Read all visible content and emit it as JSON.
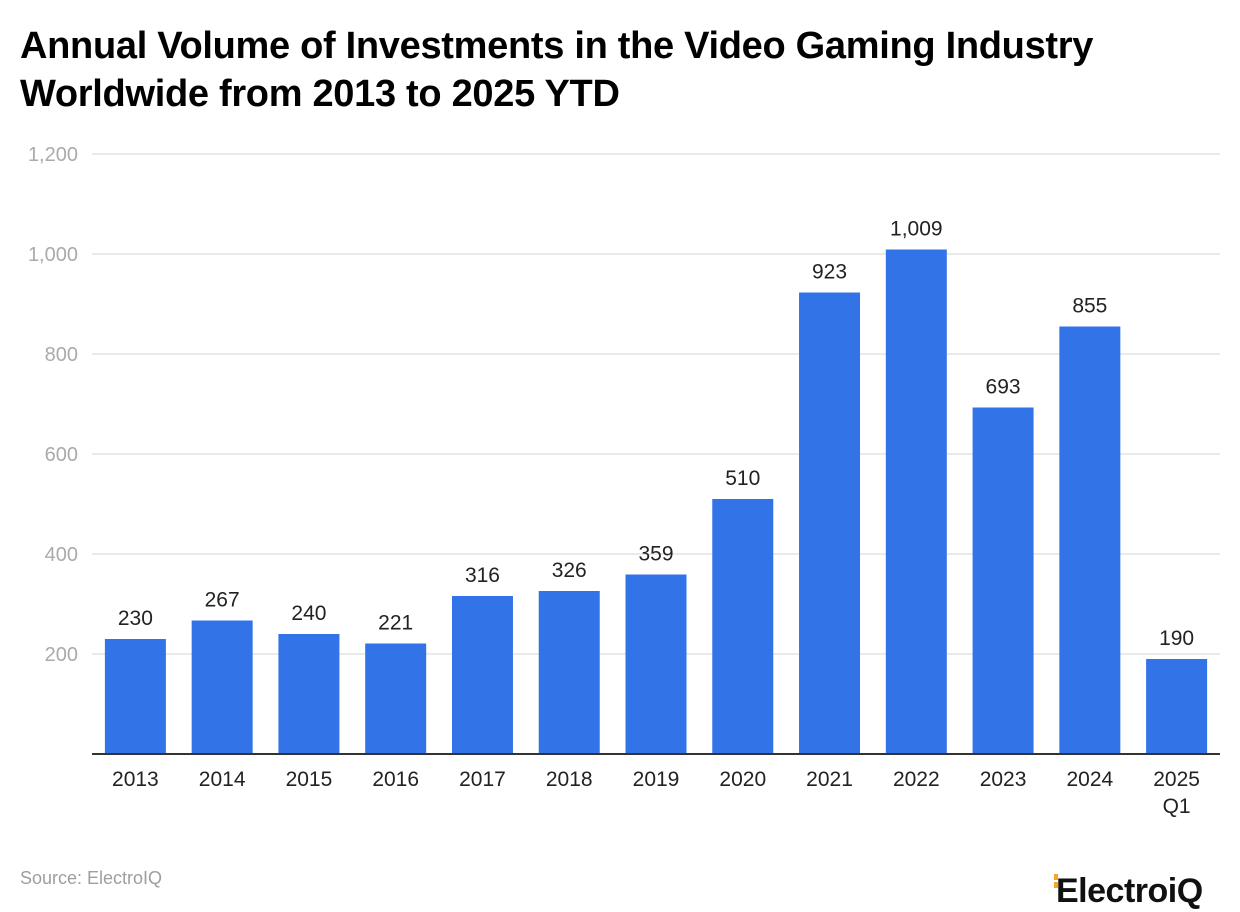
{
  "title_line1": "Annual Volume of Investments in the Video Gaming Industry",
  "title_line2": "Worldwide from 2013 to 2025 YTD",
  "source": "Source: ElectroIQ",
  "brand": "ElectroiQ",
  "colors": {
    "bar": "#3273e8",
    "grid": "#e3e3e3",
    "axis": "#333333",
    "tick_text": "#aaaaaa",
    "label_text": "#222222",
    "brand_accent": "#f5a623"
  },
  "chart_data": {
    "type": "bar",
    "title": "Annual Volume of Investments in the Video Gaming Industry Worldwide from 2013 to 2025 YTD",
    "categories": [
      "2013",
      "2014",
      "2015",
      "2016",
      "2017",
      "2018",
      "2019",
      "2020",
      "2021",
      "2022",
      "2023",
      "2024",
      "2025\nQ1"
    ],
    "values": [
      230,
      267,
      240,
      221,
      316,
      326,
      359,
      510,
      923,
      1009,
      693,
      855,
      190
    ],
    "value_labels": [
      "230",
      "267",
      "240",
      "221",
      "316",
      "326",
      "359",
      "510",
      "923",
      "1,009",
      "693",
      "855",
      "190"
    ],
    "y_ticks": [
      "1,200",
      "1,000",
      "800",
      "600",
      "400",
      "200"
    ],
    "y_tick_values": [
      1200,
      1000,
      800,
      600,
      400,
      200
    ],
    "ylim": [
      0,
      1200
    ],
    "grid": true,
    "legend": "none"
  }
}
